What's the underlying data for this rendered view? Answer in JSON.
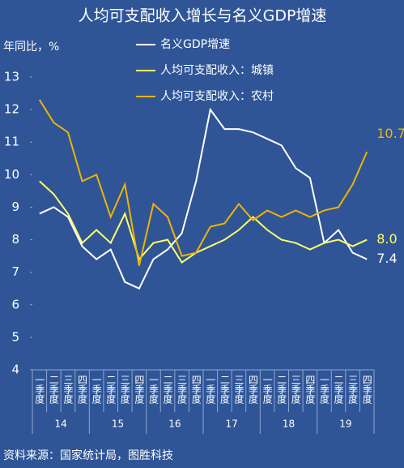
{
  "chart_data": {
    "type": "line",
    "title": "人均可支配收入增长与名义GDP增速",
    "y_label": "年同比，%",
    "source": "资料来源：国家统计局，图胜科技",
    "categories": [
      "一季度",
      "二季度",
      "三季度",
      "四季度",
      "一季度",
      "二季度",
      "三季度",
      "四季度",
      "一季度",
      "二季度",
      "三季度",
      "四季度",
      "一季度",
      "二季度",
      "三季度",
      "四季度",
      "一季度",
      "二季度",
      "三季度",
      "四季度",
      "一季度",
      "二季度",
      "三季度",
      "四季度"
    ],
    "groups": [
      "14",
      "15",
      "16",
      "17",
      "18",
      "19"
    ],
    "ylim": [
      4,
      13
    ],
    "yticks": [
      4,
      5,
      6,
      7,
      8,
      9,
      10,
      11,
      12,
      13
    ],
    "series": [
      {
        "name": "名义GDP增速",
        "color": "#ffffff",
        "end_label": "7.4",
        "values": [
          8.8,
          9.0,
          8.7,
          7.8,
          7.4,
          7.7,
          6.7,
          6.5,
          7.4,
          7.7,
          8.2,
          9.8,
          12.0,
          11.4,
          11.4,
          11.3,
          11.1,
          10.9,
          10.2,
          9.9,
          7.9,
          8.3,
          7.6,
          7.4
        ]
      },
      {
        "name": "人均可支配收入：城镇",
        "color": "#ffff66",
        "end_label": "8.0",
        "values": [
          9.8,
          9.4,
          8.8,
          7.9,
          8.3,
          7.9,
          8.8,
          7.4,
          7.9,
          8.0,
          7.3,
          7.6,
          7.8,
          8.0,
          8.3,
          8.7,
          8.3,
          8.0,
          7.9,
          7.7,
          7.9,
          8.0,
          7.8,
          8.0
        ]
      },
      {
        "name": "人均可支配收入：农村",
        "color": "#f0b400",
        "end_label": "10.7",
        "values": [
          12.3,
          11.6,
          11.3,
          9.8,
          10.0,
          8.7,
          9.7,
          7.2,
          9.1,
          8.7,
          7.5,
          7.6,
          8.4,
          8.5,
          9.1,
          8.6,
          8.9,
          8.7,
          8.9,
          8.7,
          8.9,
          9.0,
          9.7,
          10.7
        ]
      }
    ]
  }
}
